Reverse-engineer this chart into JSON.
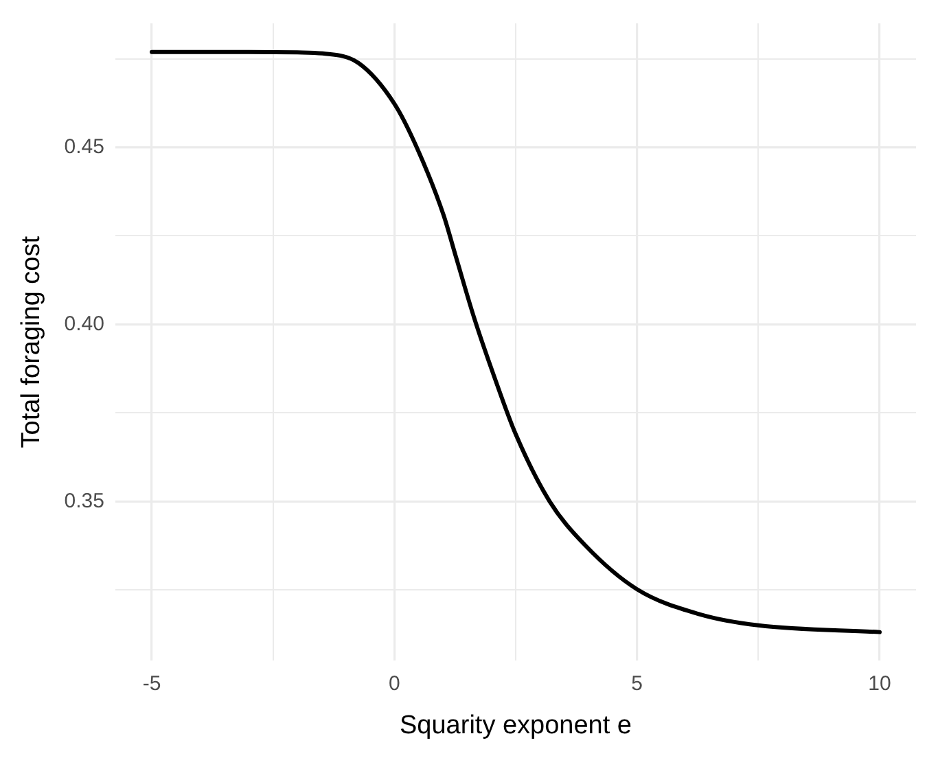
{
  "chart_data": {
    "type": "line",
    "xlabel": "Squarity exponent e",
    "ylabel": "Total foraging cost",
    "x": [
      -5,
      -3,
      -2,
      -1.48,
      -0.74,
      0,
      0.46,
      1.01,
      1.27,
      1.64,
      2.09,
      2.5,
      3.2,
      3.94,
      5,
      6.3,
      7.5,
      10
    ],
    "series": [
      {
        "color": "#000000",
        "values": [
          0.4769,
          0.4769,
          0.4768,
          0.4765,
          0.4738,
          0.4623,
          0.45,
          0.431,
          0.419,
          0.402,
          0.384,
          0.369,
          0.35,
          0.3375,
          0.3252,
          0.3181,
          0.315,
          0.3131
        ]
      }
    ],
    "xlim": [
      -5.75,
      10.75
    ],
    "ylim": [
      0.305,
      0.485
    ],
    "xticks": [
      -5,
      {
        "value": -2.5,
        "label": null
      },
      0,
      {
        "value": 2.5,
        "label": null
      },
      5,
      {
        "value": 7.5,
        "label": null
      },
      10
    ],
    "yticks": [
      {
        "value": 0.325,
        "label": null
      },
      {
        "value": 0.35,
        "label": "0.35"
      },
      {
        "value": 0.375,
        "label": null
      },
      {
        "value": 0.4,
        "label": "0.40"
      },
      {
        "value": 0.425,
        "label": null
      },
      {
        "value": 0.45,
        "label": "0.45"
      },
      {
        "value": 0.475,
        "label": null
      }
    ],
    "grid": true,
    "legend": false,
    "marker": "none",
    "line_style": "solid"
  }
}
